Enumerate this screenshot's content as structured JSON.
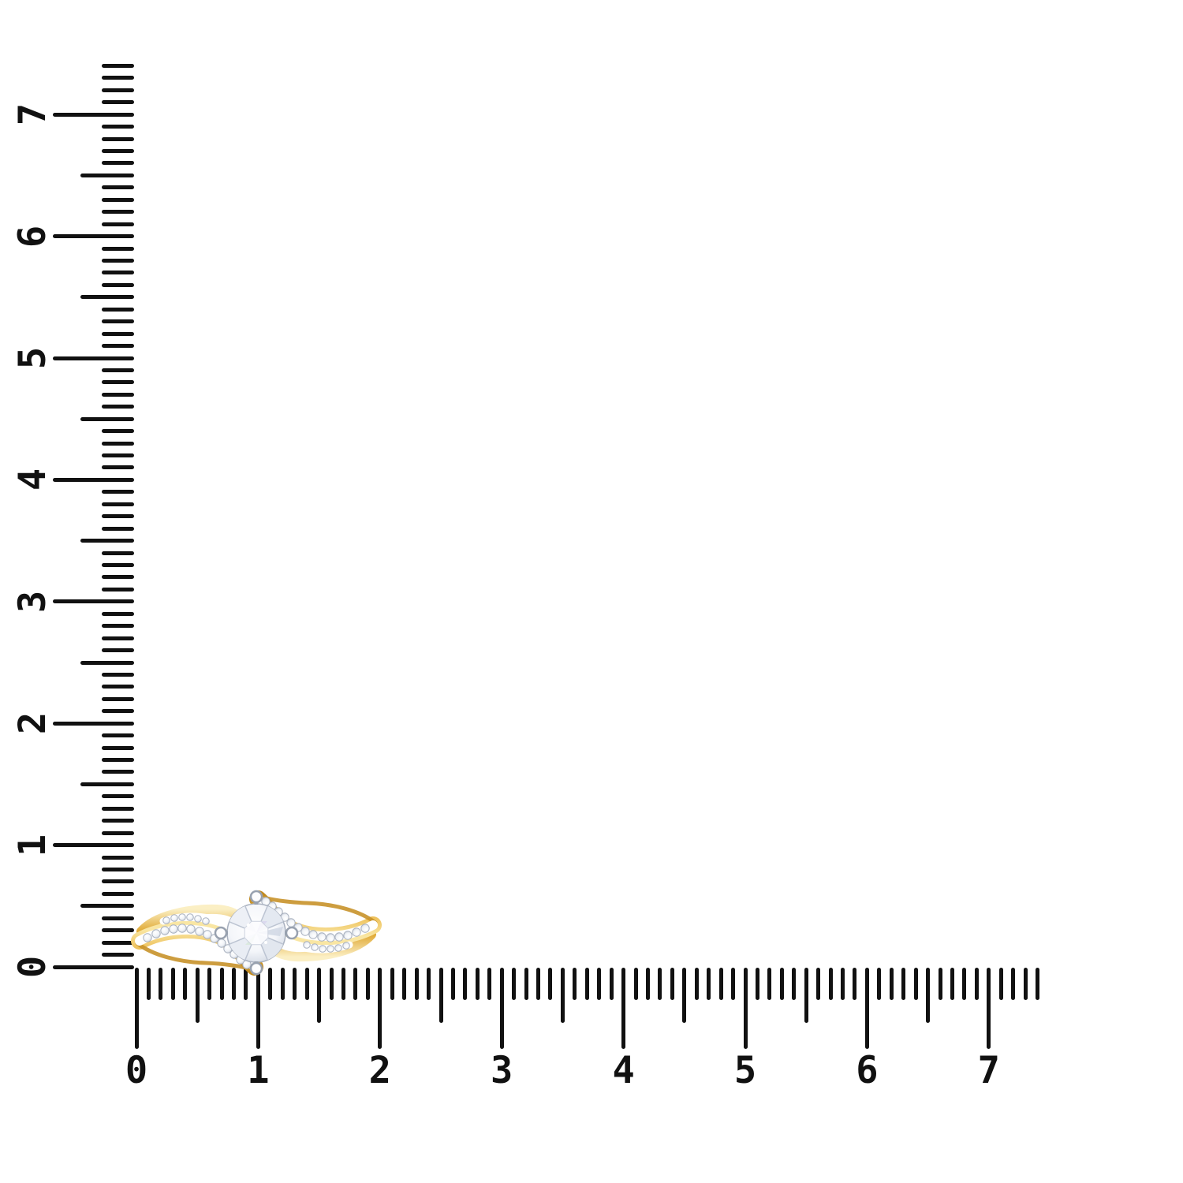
{
  "page": {
    "background": "#ffffff"
  },
  "rulers": {
    "tick_color": "#111111",
    "label_color": "#111111",
    "horizontal": {
      "labels": [
        "0",
        "1",
        "2",
        "3",
        "4",
        "5",
        "6",
        "7"
      ],
      "min": 0,
      "max": 7.4,
      "minor_step": 0.1,
      "medium_step": 0.5,
      "major_step": 1
    },
    "vertical": {
      "labels": [
        "0",
        "1",
        "2",
        "3",
        "4",
        "5",
        "6",
        "7"
      ],
      "min": 0,
      "max": 7.4,
      "minor_step": 0.1,
      "medium_step": 0.5,
      "major_step": 1
    }
  },
  "ring": {
    "style": "bypass solitaire with pave swirls",
    "center_stone_shape": "round",
    "prong_count": 4,
    "pave_stone_count_per_side": 20,
    "colors": {
      "gold_light": "#FBEFC4",
      "gold_mid": "#EDBE55",
      "gold_deep": "#C18A1F",
      "gold_edge": "#C8922A",
      "diamond_white": "#FFFFFF",
      "diamond_facet": "#C6CDDA",
      "diamond_outline": "#A9B1BF",
      "prong_metal": "#FDFDFE",
      "prong_outline": "#98A1AF"
    }
  }
}
